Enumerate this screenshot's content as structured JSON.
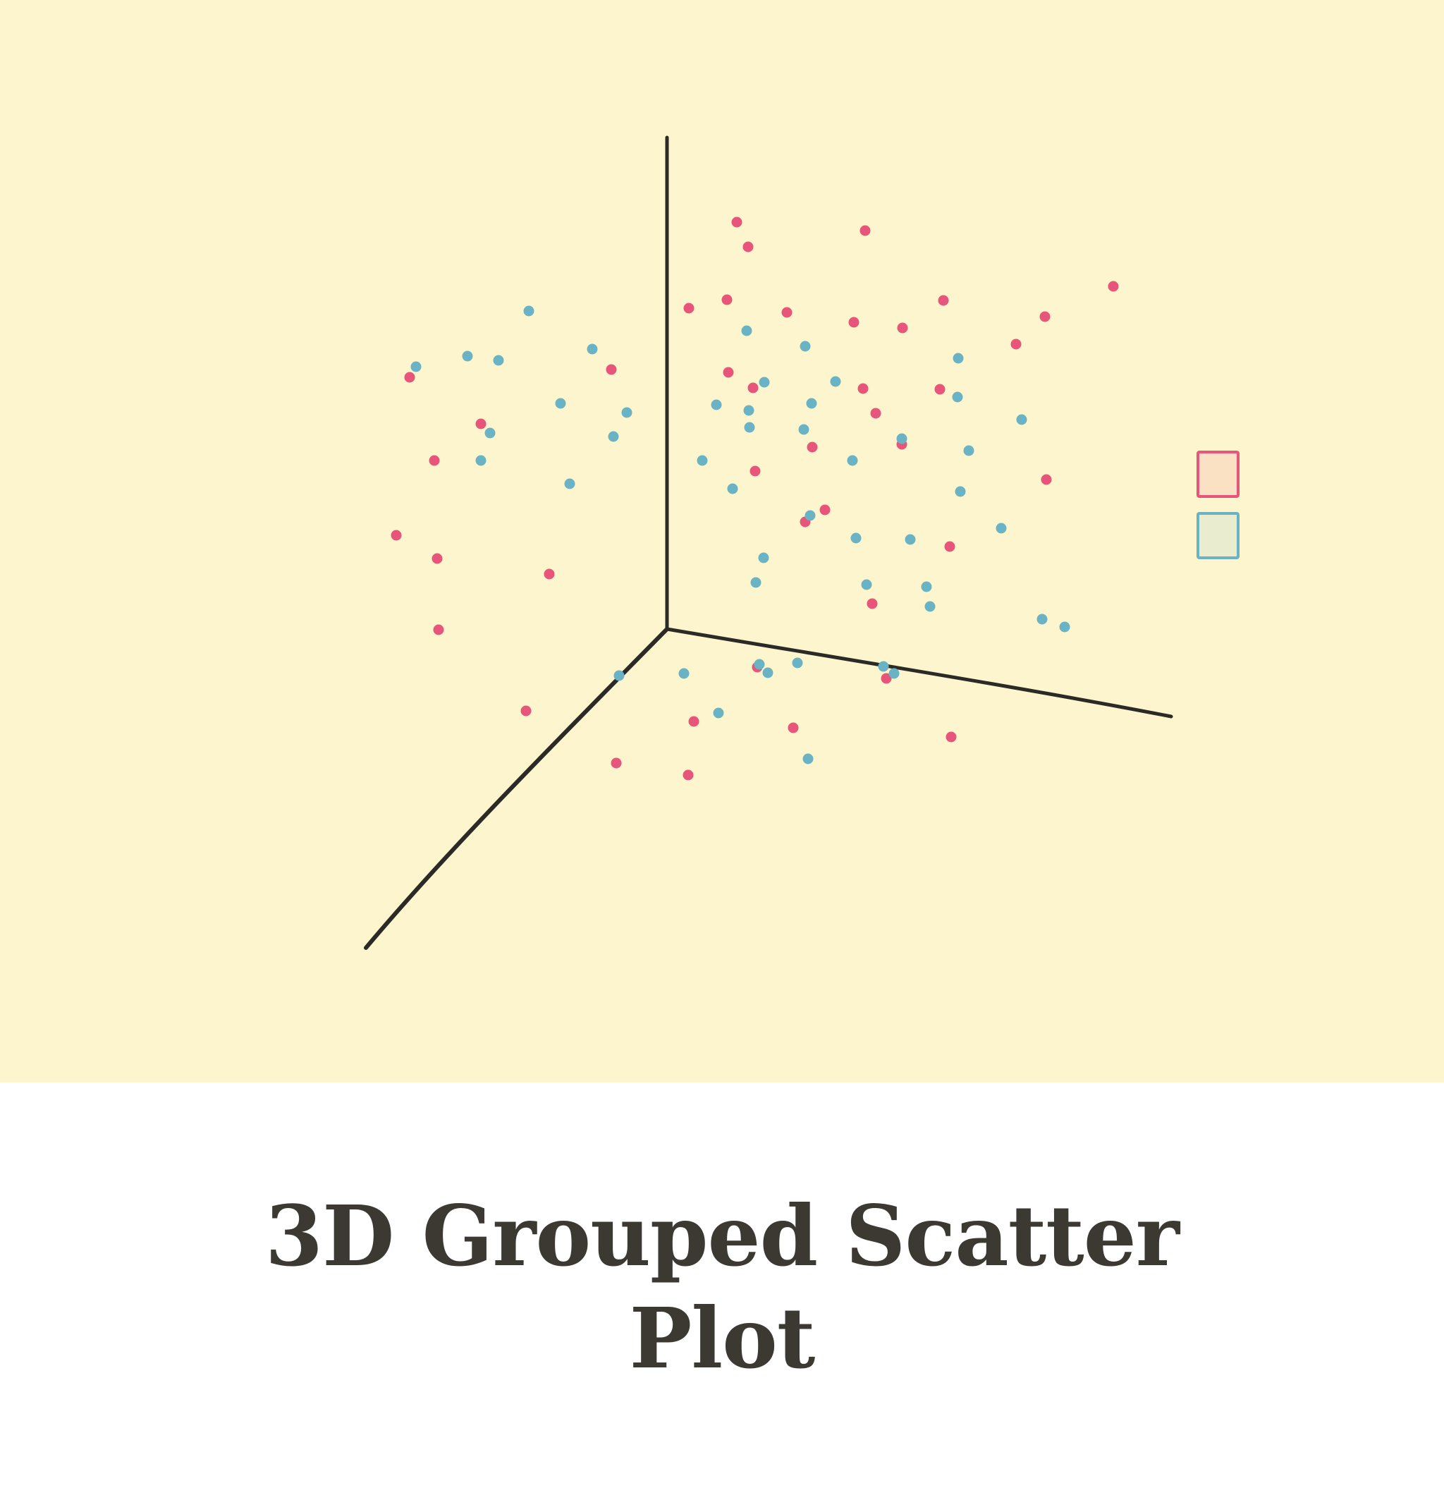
{
  "chart_data": {
    "type": "scatter",
    "title_lines": [
      "3D Grouped Scatter",
      "Plot"
    ],
    "colors": {
      "background": "#fdf5cd",
      "axis": "#2b2a26",
      "series_red": "#e8557a",
      "series_blue": "#6ab3c4",
      "legend_red_fill": "#fbe1c4",
      "legend_blue_fill": "#e9ecce"
    },
    "legend": {
      "placement": "right",
      "labels": [
        "",
        ""
      ]
    },
    "grid": false,
    "series": [
      {
        "color_key": "series_red",
        "points": [
          [
            1045,
            315
          ],
          [
            1227,
            327
          ],
          [
            1061,
            350
          ],
          [
            977,
            437
          ],
          [
            1031,
            425
          ],
          [
            1116,
            443
          ],
          [
            1211,
            457
          ],
          [
            1280,
            465
          ],
          [
            1338,
            426
          ],
          [
            1482,
            449
          ],
          [
            1579,
            406
          ],
          [
            581,
            535
          ],
          [
            867,
            524
          ],
          [
            1033,
            528
          ],
          [
            1068,
            550
          ],
          [
            1224,
            551
          ],
          [
            1242,
            586
          ],
          [
            1333,
            552
          ],
          [
            1441,
            488
          ],
          [
            682,
            601
          ],
          [
            616,
            653
          ],
          [
            1071,
            668
          ],
          [
            1152,
            634
          ],
          [
            1279,
            630
          ],
          [
            1484,
            680
          ],
          [
            1170,
            723
          ],
          [
            1142,
            740
          ],
          [
            562,
            759
          ],
          [
            620,
            792
          ],
          [
            779,
            814
          ],
          [
            1347,
            775
          ],
          [
            1237,
            856
          ],
          [
            622,
            893
          ],
          [
            1074,
            946
          ],
          [
            1257,
            962
          ],
          [
            746,
            1008
          ],
          [
            984,
            1023
          ],
          [
            1125,
            1032
          ],
          [
            874,
            1082
          ],
          [
            976,
            1099
          ],
          [
            1349,
            1045
          ]
        ]
      },
      {
        "color_key": "series_blue",
        "points": [
          [
            750,
            441
          ],
          [
            663,
            505
          ],
          [
            707,
            511
          ],
          [
            590,
            520
          ],
          [
            840,
            495
          ],
          [
            1059,
            469
          ],
          [
            1142,
            491
          ],
          [
            1185,
            541
          ],
          [
            1359,
            508
          ],
          [
            1084,
            542
          ],
          [
            1358,
            563
          ],
          [
            795,
            572
          ],
          [
            889,
            585
          ],
          [
            1016,
            574
          ],
          [
            1062,
            582
          ],
          [
            1151,
            572
          ],
          [
            1449,
            595
          ],
          [
            695,
            614
          ],
          [
            682,
            653
          ],
          [
            870,
            619
          ],
          [
            1063,
            606
          ],
          [
            1140,
            609
          ],
          [
            1279,
            622
          ],
          [
            1374,
            639
          ],
          [
            996,
            653
          ],
          [
            1039,
            693
          ],
          [
            1209,
            653
          ],
          [
            1362,
            697
          ],
          [
            1149,
            731
          ],
          [
            808,
            686
          ],
          [
            1214,
            763
          ],
          [
            1083,
            791
          ],
          [
            1420,
            749
          ],
          [
            1291,
            765
          ],
          [
            1072,
            826
          ],
          [
            1229,
            829
          ],
          [
            1314,
            832
          ],
          [
            1319,
            860
          ],
          [
            1478,
            878
          ],
          [
            1510,
            889
          ],
          [
            878,
            958
          ],
          [
            970,
            955
          ],
          [
            1077,
            942
          ],
          [
            1089,
            954
          ],
          [
            1131,
            940
          ],
          [
            1253,
            945
          ],
          [
            1268,
            955
          ],
          [
            1019,
            1011
          ],
          [
            1146,
            1076
          ]
        ]
      }
    ]
  }
}
